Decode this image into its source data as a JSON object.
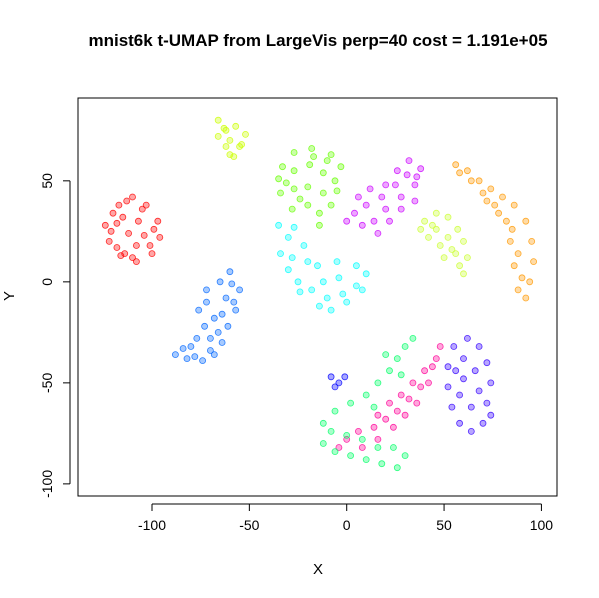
{
  "chart_data": {
    "type": "scatter",
    "title": "mnist6k t-UMAP from LargeVis perp=40 cost = 1.191e+05",
    "xlabel": "X",
    "ylabel": "Y",
    "xlim": [
      -138,
      108
    ],
    "ylim": [
      -106,
      91
    ],
    "xticks": [
      -100,
      -50,
      0,
      50,
      100
    ],
    "yticks": [
      -100,
      -50,
      0,
      50
    ],
    "xtick_labels": [
      "-100",
      "-50",
      "0",
      "50",
      "100"
    ],
    "ytick_labels": [
      "-100",
      "-50",
      "0",
      "50"
    ],
    "grid": false,
    "legend": "none",
    "marker": "open circle, semi-transparent",
    "series": [
      {
        "color": "#FF0000",
        "points": [
          [
            -117,
            38
          ],
          [
            -110,
            42
          ],
          [
            -103,
            38
          ],
          [
            -97,
            30
          ],
          [
            -96,
            22
          ],
          [
            -100,
            14
          ],
          [
            -108,
            10
          ],
          [
            -116,
            13
          ],
          [
            -122,
            20
          ],
          [
            -124,
            28
          ],
          [
            -120,
            34
          ],
          [
            -113,
            40
          ],
          [
            -105,
            36
          ],
          [
            -99,
            26
          ],
          [
            -101,
            18
          ],
          [
            -110,
            12
          ],
          [
            -118,
            17
          ],
          [
            -121,
            25
          ],
          [
            -115,
            32
          ],
          [
            -107,
            30
          ],
          [
            -112,
            24
          ],
          [
            -108,
            18
          ],
          [
            -104,
            23
          ],
          [
            -118,
            29
          ],
          [
            -114,
            14
          ]
        ]
      },
      {
        "color": "#0066FF",
        "points": [
          [
            -60,
            5
          ],
          [
            -55,
            -4
          ],
          [
            -57,
            -14
          ],
          [
            -61,
            -22
          ],
          [
            -64,
            -30
          ],
          [
            -68,
            -36
          ],
          [
            -74,
            -39
          ],
          [
            -82,
            -38
          ],
          [
            -88,
            -36
          ],
          [
            -84,
            -33
          ],
          [
            -78,
            -37
          ],
          [
            -70,
            -34
          ],
          [
            -66,
            -25
          ],
          [
            -68,
            -18
          ],
          [
            -72,
            -10
          ],
          [
            -76,
            -14
          ],
          [
            -73,
            -22
          ],
          [
            -77,
            -28
          ],
          [
            -70,
            -28
          ],
          [
            -64,
            -16
          ],
          [
            -62,
            -8
          ],
          [
            -65,
            0
          ],
          [
            -59,
            -1
          ],
          [
            -72,
            -4
          ],
          [
            -80,
            -32
          ],
          [
            -58,
            -10
          ]
        ]
      },
      {
        "color": "#CCFF00",
        "points": [
          [
            -66,
            80
          ],
          [
            -62,
            75
          ],
          [
            -57,
            77
          ],
          [
            -52,
            73
          ],
          [
            -55,
            67
          ],
          [
            -58,
            62
          ],
          [
            -62,
            67
          ],
          [
            -66,
            72
          ],
          [
            -60,
            70
          ],
          [
            -54,
            68
          ],
          [
            -60,
            63
          ],
          [
            -63,
            76
          ]
        ]
      },
      {
        "color": "#66FF00",
        "points": [
          [
            -33,
            57
          ],
          [
            -27,
            64
          ],
          [
            -18,
            66
          ],
          [
            -8,
            63
          ],
          [
            -3,
            57
          ],
          [
            -6,
            50
          ],
          [
            -12,
            44
          ],
          [
            -20,
            38
          ],
          [
            -28,
            36
          ],
          [
            -34,
            44
          ],
          [
            -35,
            51
          ],
          [
            -27,
            55
          ],
          [
            -19,
            58
          ],
          [
            -12,
            54
          ],
          [
            -20,
            47
          ],
          [
            -27,
            46
          ],
          [
            -14,
            34
          ],
          [
            -8,
            38
          ],
          [
            -24,
            41
          ],
          [
            -17,
            62
          ],
          [
            -31,
            49
          ],
          [
            -10,
            60
          ],
          [
            -14,
            28
          ],
          [
            -5,
            45
          ]
        ]
      },
      {
        "color": "#00FFFF",
        "points": [
          [
            -35,
            28
          ],
          [
            -30,
            22
          ],
          [
            -34,
            14
          ],
          [
            -30,
            6
          ],
          [
            -25,
            0
          ],
          [
            -18,
            -4
          ],
          [
            -10,
            -8
          ],
          [
            -2,
            -6
          ],
          [
            5,
            -2
          ],
          [
            10,
            4
          ],
          [
            5,
            8
          ],
          [
            -5,
            10
          ],
          [
            -15,
            8
          ],
          [
            -22,
            18
          ],
          [
            -27,
            27
          ],
          [
            -20,
            10
          ],
          [
            -12,
            0
          ],
          [
            -4,
            2
          ],
          [
            -28,
            12
          ],
          [
            -24,
            -5
          ],
          [
            -14,
            -12
          ],
          [
            0,
            -10
          ],
          [
            8,
            -4
          ],
          [
            -8,
            -14
          ]
        ]
      },
      {
        "color": "#CC00FF",
        "points": [
          [
            6,
            42
          ],
          [
            12,
            46
          ],
          [
            20,
            48
          ],
          [
            26,
            55
          ],
          [
            32,
            60
          ],
          [
            38,
            56
          ],
          [
            35,
            48
          ],
          [
            28,
            42
          ],
          [
            20,
            36
          ],
          [
            14,
            30
          ],
          [
            8,
            28
          ],
          [
            4,
            34
          ],
          [
            10,
            38
          ],
          [
            18,
            42
          ],
          [
            25,
            48
          ],
          [
            31,
            53
          ],
          [
            28,
            36
          ],
          [
            35,
            40
          ],
          [
            16,
            24
          ],
          [
            22,
            30
          ],
          [
            0,
            30
          ],
          [
            36,
            52
          ]
        ]
      },
      {
        "color": "#CCFF33",
        "points": [
          [
            40,
            30
          ],
          [
            46,
            34
          ],
          [
            52,
            32
          ],
          [
            57,
            26
          ],
          [
            60,
            20
          ],
          [
            62,
            12
          ],
          [
            58,
            8
          ],
          [
            54,
            16
          ],
          [
            48,
            18
          ],
          [
            42,
            22
          ],
          [
            38,
            26
          ],
          [
            46,
            26
          ],
          [
            52,
            22
          ],
          [
            56,
            14
          ],
          [
            60,
            4
          ],
          [
            44,
            28
          ],
          [
            50,
            12
          ]
        ]
      },
      {
        "color": "#FF9900",
        "points": [
          [
            56,
            58
          ],
          [
            62,
            55
          ],
          [
            68,
            50
          ],
          [
            74,
            46
          ],
          [
            80,
            42
          ],
          [
            86,
            38
          ],
          [
            92,
            30
          ],
          [
            95,
            20
          ],
          [
            96,
            10
          ],
          [
            94,
            0
          ],
          [
            92,
            -8
          ],
          [
            88,
            -4
          ],
          [
            86,
            8
          ],
          [
            84,
            20
          ],
          [
            82,
            30
          ],
          [
            76,
            38
          ],
          [
            70,
            44
          ],
          [
            64,
            50
          ],
          [
            58,
            54
          ],
          [
            88,
            14
          ],
          [
            90,
            2
          ],
          [
            85,
            26
          ],
          [
            78,
            34
          ],
          [
            72,
            40
          ]
        ]
      },
      {
        "color": "#3300FF",
        "points": [
          [
            55,
            -32
          ],
          [
            62,
            -28
          ],
          [
            68,
            -32
          ],
          [
            72,
            -40
          ],
          [
            74,
            -50
          ],
          [
            72,
            -60
          ],
          [
            70,
            -70
          ],
          [
            64,
            -74
          ],
          [
            58,
            -70
          ],
          [
            54,
            -62
          ],
          [
            52,
            -52
          ],
          [
            56,
            -44
          ],
          [
            60,
            -38
          ],
          [
            66,
            -44
          ],
          [
            68,
            -54
          ],
          [
            64,
            -62
          ],
          [
            58,
            -56
          ],
          [
            60,
            -48
          ],
          [
            74,
            -66
          ],
          [
            52,
            -42
          ]
        ]
      },
      {
        "color": "#FF0099",
        "points": [
          [
            48,
            -32
          ],
          [
            44,
            -42
          ],
          [
            38,
            -52
          ],
          [
            32,
            -58
          ],
          [
            26,
            -64
          ],
          [
            20,
            -68
          ],
          [
            14,
            -72
          ],
          [
            6,
            -74
          ],
          [
            0,
            -78
          ],
          [
            -4,
            -82
          ],
          [
            8,
            -82
          ],
          [
            16,
            -78
          ],
          [
            24,
            -72
          ],
          [
            30,
            -66
          ],
          [
            36,
            -60
          ],
          [
            42,
            -50
          ],
          [
            46,
            -38
          ],
          [
            40,
            -44
          ],
          [
            34,
            -50
          ],
          [
            28,
            -56
          ],
          [
            22,
            -60
          ],
          [
            16,
            -66
          ]
        ]
      },
      {
        "color": "#00FF66",
        "points": [
          [
            -12,
            -80
          ],
          [
            -6,
            -84
          ],
          [
            2,
            -86
          ],
          [
            10,
            -88
          ],
          [
            18,
            -90
          ],
          [
            26,
            -92
          ],
          [
            30,
            -86
          ],
          [
            24,
            -82
          ],
          [
            16,
            -82
          ],
          [
            8,
            -78
          ],
          [
            0,
            -76
          ],
          [
            -8,
            -74
          ],
          [
            -12,
            -70
          ],
          [
            -6,
            -64
          ],
          [
            2,
            -60
          ],
          [
            10,
            -56
          ],
          [
            16,
            -50
          ],
          [
            22,
            -44
          ],
          [
            26,
            -38
          ],
          [
            30,
            -32
          ],
          [
            34,
            -28
          ],
          [
            28,
            -46
          ],
          [
            20,
            -36
          ],
          [
            14,
            -62
          ]
        ]
      },
      {
        "color": "#0000FF",
        "points": [
          [
            -8,
            -47
          ],
          [
            -4,
            -50
          ],
          [
            -1,
            -47
          ],
          [
            -6,
            -52
          ]
        ]
      }
    ]
  }
}
